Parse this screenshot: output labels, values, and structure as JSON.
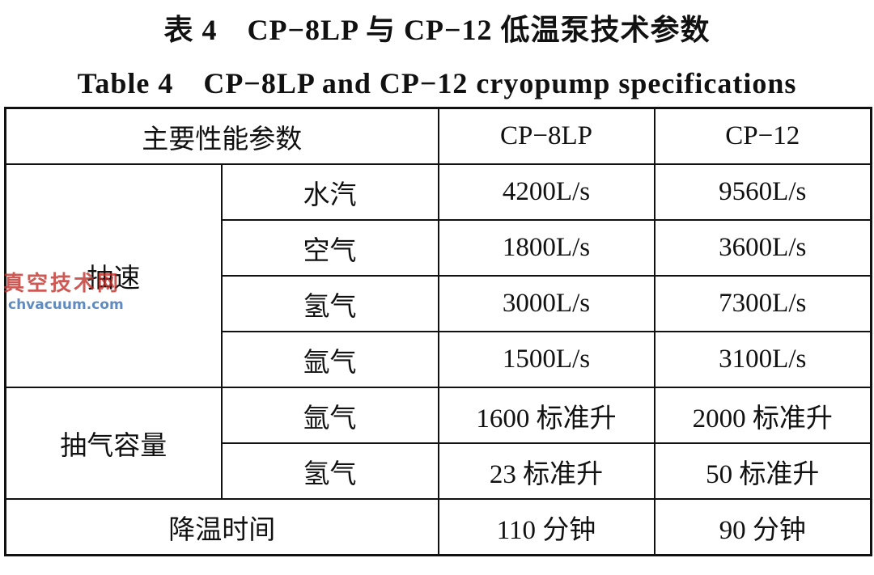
{
  "title": {
    "cn": "表 4　CP−8LP 与 CP−12 低温泵技术参数",
    "en": "Table 4　CP−8LP and CP−12 cryopump specifications"
  },
  "table": {
    "header": [
      "主要性能参数",
      "CP−8LP",
      "CP−12"
    ],
    "groups": [
      {
        "label": "抽速",
        "rows": [
          [
            "水汽",
            "4200L/s",
            "9560L/s"
          ],
          [
            "空气",
            "1800L/s",
            "3600L/s"
          ],
          [
            "氢气",
            "3000L/s",
            "7300L/s"
          ],
          [
            "氩气",
            "1500L/s",
            "3100L/s"
          ]
        ]
      },
      {
        "label": "抽气容量",
        "rows": [
          [
            "氩气",
            "1600 标准升",
            "2000 标准升"
          ],
          [
            "氢气",
            "23 标准升",
            "50 标准升"
          ]
        ]
      }
    ],
    "footer": [
      "降温时间",
      "110 分钟",
      "90 分钟"
    ]
  },
  "watermark": {
    "name": "真空技术网",
    "url": "chvacuum.com"
  }
}
